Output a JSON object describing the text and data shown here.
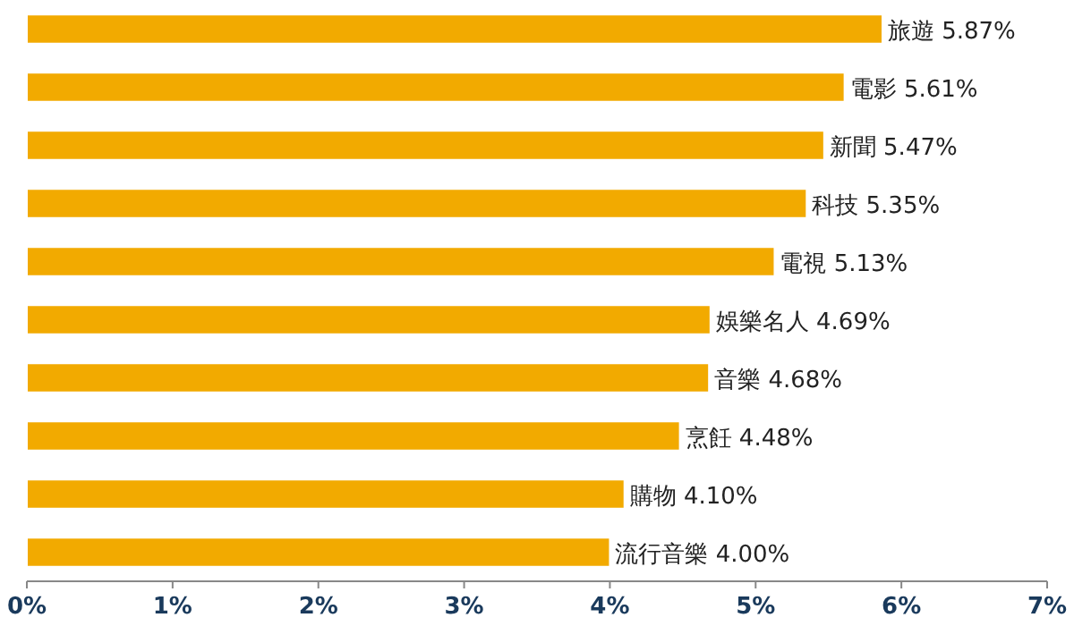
{
  "chart_data": {
    "type": "bar",
    "orientation": "horizontal",
    "categories": [
      "旅遊",
      "電影",
      "新聞",
      "科技",
      "電視",
      "娛樂名人",
      "音樂",
      "烹飪",
      "購物",
      "流行音樂"
    ],
    "values": [
      5.87,
      5.61,
      5.47,
      5.35,
      5.13,
      4.69,
      4.68,
      4.48,
      4.1,
      4.0
    ],
    "value_labels": [
      "5.87%",
      "5.61%",
      "5.47%",
      "5.35%",
      "5.13%",
      "4.69%",
      "4.68%",
      "4.48%",
      "4.10%",
      "4.00%"
    ],
    "color": "#f2aa00",
    "xlim": [
      0,
      7
    ],
    "xticks": [
      {
        "value": 0,
        "label": "0%"
      },
      {
        "value": 1,
        "label": "1%"
      },
      {
        "value": 2,
        "label": "2%"
      },
      {
        "value": 3,
        "label": "3%"
      },
      {
        "value": 4,
        "label": "4%"
      },
      {
        "value": 5,
        "label": "5%"
      },
      {
        "value": 6,
        "label": "6%"
      },
      {
        "value": 7,
        "label": "7%"
      }
    ],
    "grid": false
  }
}
